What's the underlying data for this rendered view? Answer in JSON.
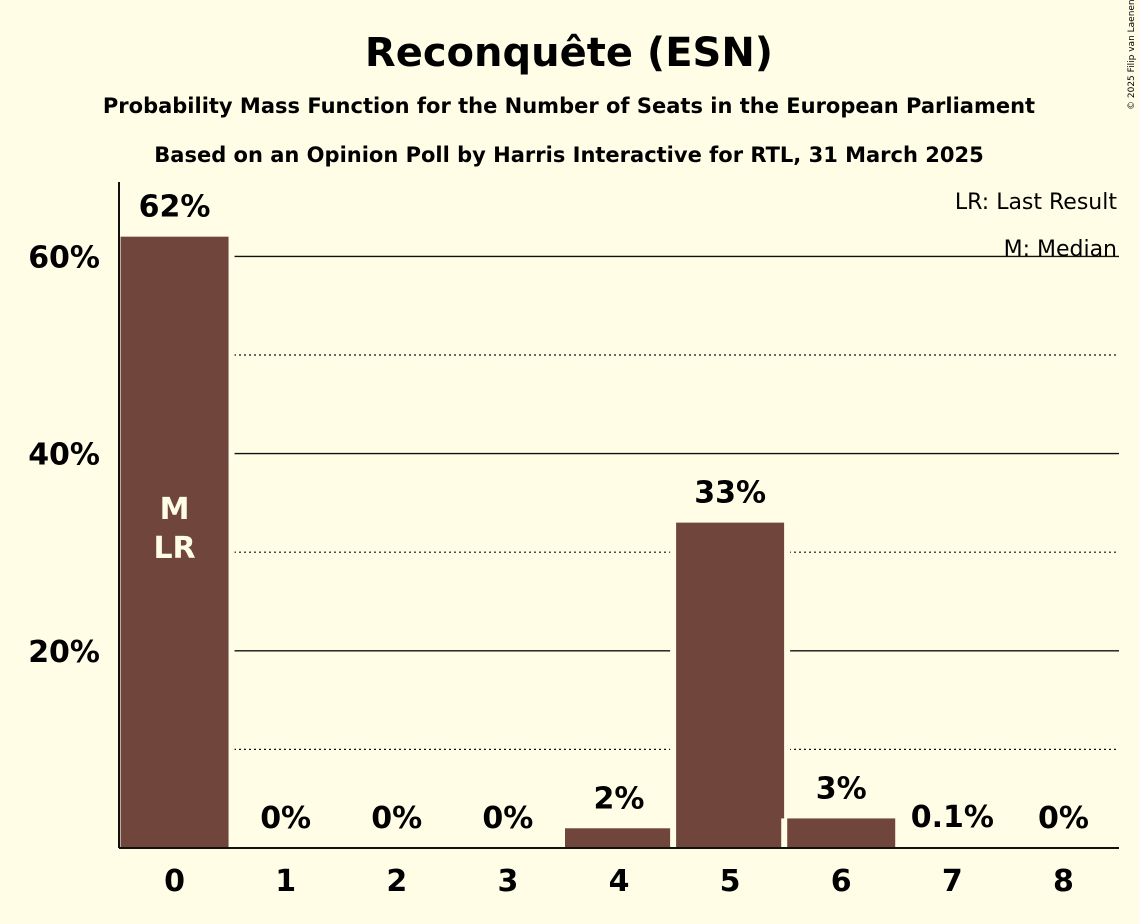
{
  "title": "Reconquête (ESN)",
  "subtitle1": "Probability Mass Function for the Number of Seats in the European Parliament",
  "subtitle2": "Based on an Opinion Poll by Harris Interactive for RTL, 31 March 2025",
  "copyright": "© 2025 Filip van Laenen",
  "legend": {
    "last_result": "LR: Last Result",
    "median": "M: Median"
  },
  "colors": {
    "background": "#FFFDE6",
    "bar": "#70463C",
    "text": "#111111"
  },
  "chart_data": {
    "type": "bar",
    "categories": [
      "0",
      "1",
      "2",
      "3",
      "4",
      "5",
      "6",
      "7",
      "8"
    ],
    "values": [
      62,
      0,
      0,
      0,
      2,
      33,
      3,
      0.1,
      0
    ],
    "value_labels": [
      "62%",
      "0%",
      "0%",
      "0%",
      "2%",
      "33%",
      "3%",
      "0.1%",
      "0%"
    ],
    "ylim": [
      0,
      67
    ],
    "yticks": [
      20,
      40,
      60
    ],
    "ytick_labels": [
      "20%",
      "40%",
      "60%"
    ],
    "minor_gridlines": [
      10,
      30,
      50
    ],
    "median_index": 0,
    "last_result_index": 0,
    "median_marker": "M",
    "last_result_marker": "LR",
    "legend_position": "top-right",
    "grid": true
  }
}
